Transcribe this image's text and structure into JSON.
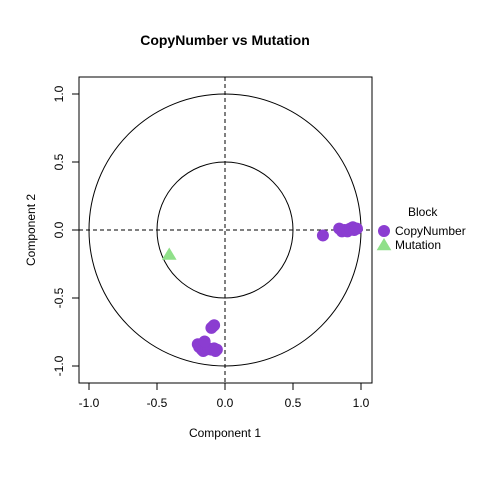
{
  "chart_data": {
    "type": "scatter",
    "title": "CopyNumber vs Mutation",
    "xlabel": "Component  1",
    "ylabel": "Component  2",
    "xlim": [
      -1.0,
      1.0
    ],
    "ylim": [
      -1.0,
      1.0
    ],
    "x_ticks": [
      "-1.0",
      "-0.5",
      "0.0",
      "0.5",
      "1.0"
    ],
    "y_ticks": [
      "-1.0",
      "-0.5",
      "0.0",
      "0.5",
      "1.0"
    ],
    "circles": [
      1.0,
      0.5
    ],
    "reference_lines": {
      "x": 0,
      "y": 0,
      "style": "dashed"
    },
    "legend": {
      "title": "Block",
      "placement": "right"
    },
    "series": [
      {
        "name": "CopyNumber",
        "color": "#8b3dd1",
        "marker": "circle",
        "points": [
          [
            0.72,
            -0.04
          ],
          [
            0.84,
            0.01
          ],
          [
            0.86,
            -0.01
          ],
          [
            0.88,
            0.0
          ],
          [
            0.9,
            -0.01
          ],
          [
            0.92,
            0.01
          ],
          [
            0.94,
            0.02
          ],
          [
            0.95,
            0.0
          ],
          [
            0.96,
            0.01
          ],
          [
            0.97,
            0.01
          ],
          [
            -0.08,
            -0.7
          ],
          [
            -0.1,
            -0.72
          ],
          [
            -0.09,
            -0.71
          ],
          [
            -0.2,
            -0.84
          ],
          [
            -0.18,
            -0.85
          ],
          [
            -0.19,
            -0.86
          ],
          [
            -0.17,
            -0.88
          ],
          [
            -0.16,
            -0.89
          ],
          [
            -0.14,
            -0.88
          ],
          [
            -0.12,
            -0.87
          ],
          [
            -0.1,
            -0.88
          ],
          [
            -0.08,
            -0.87
          ],
          [
            -0.07,
            -0.89
          ],
          [
            -0.06,
            -0.88
          ],
          [
            -0.15,
            -0.82
          ]
        ]
      },
      {
        "name": "Mutation",
        "color": "#90e08a",
        "marker": "triangle",
        "points": [
          [
            -0.41,
            -0.18
          ]
        ]
      }
    ]
  }
}
